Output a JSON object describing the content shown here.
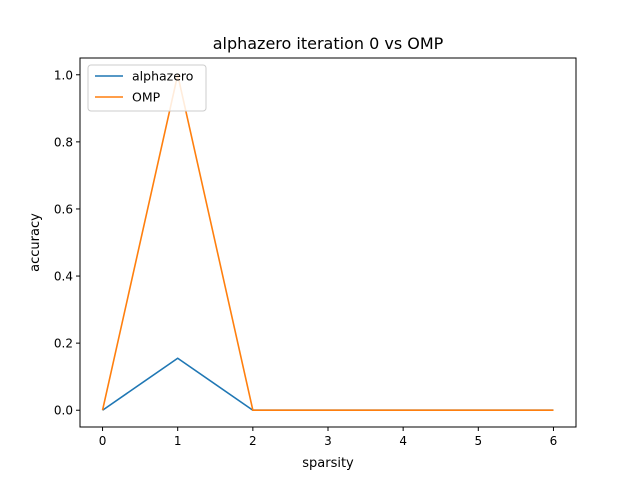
{
  "chart_data": {
    "type": "line",
    "title": "alphazero iteration 0 vs OMP",
    "xlabel": "sparsity",
    "ylabel": "accuracy",
    "x": [
      0,
      1,
      2,
      3,
      4,
      5,
      6
    ],
    "xlim": [
      -0.3,
      6.3
    ],
    "ylim": [
      -0.05,
      1.05
    ],
    "xticks": [
      0,
      1,
      2,
      3,
      4,
      5,
      6
    ],
    "yticks": [
      0.0,
      0.2,
      0.4,
      0.6,
      0.8,
      1.0
    ],
    "xtick_labels": [
      "0",
      "1",
      "2",
      "3",
      "4",
      "5",
      "6"
    ],
    "ytick_labels": [
      "0.0",
      "0.2",
      "0.4",
      "0.6",
      "0.8",
      "1.0"
    ],
    "grid": false,
    "legend_position": "top-left",
    "series": [
      {
        "name": "alphazero",
        "color": "#1f77b4",
        "values": [
          0.0,
          0.155,
          0.0,
          0.0,
          0.0,
          0.0,
          0.0
        ]
      },
      {
        "name": "OMP",
        "color": "#ff7f0e",
        "values": [
          0.0,
          1.0,
          0.0,
          0.0,
          0.0,
          0.0,
          0.0
        ]
      }
    ]
  }
}
